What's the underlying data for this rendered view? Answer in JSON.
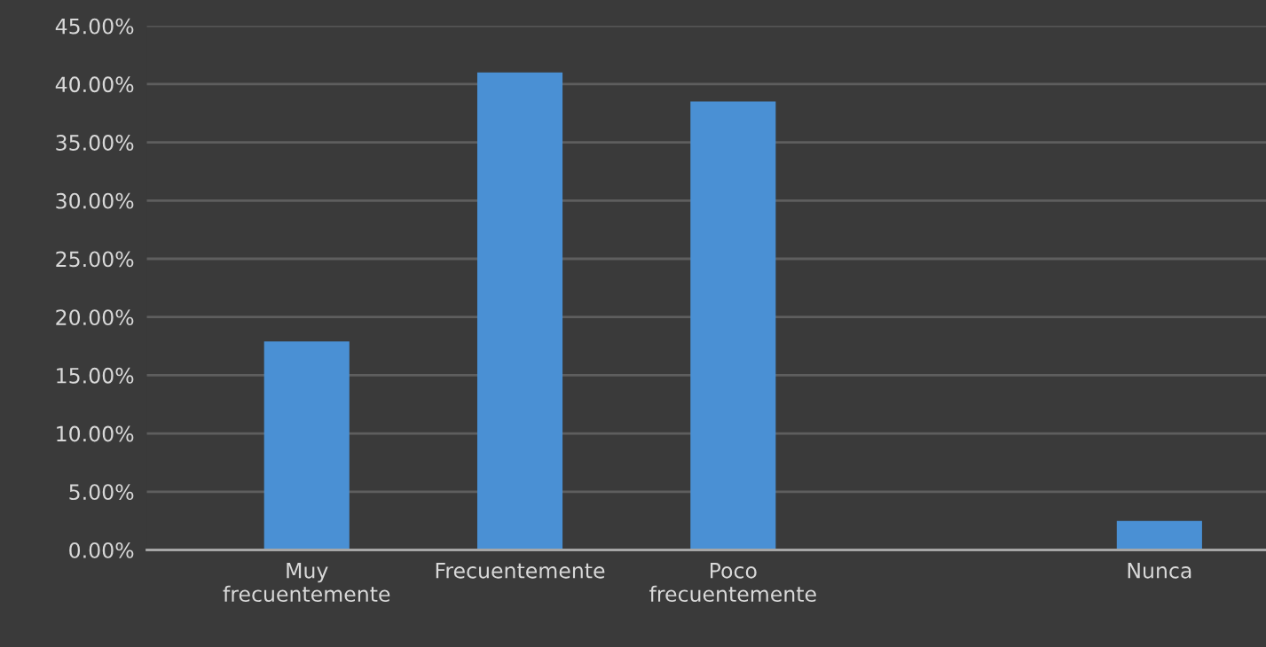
{
  "chart_data": {
    "type": "bar",
    "categories": [
      "Muy\nfrecuentemente",
      "Frecuentemente",
      "Poco\nfrecuentemente",
      null,
      "Nunca"
    ],
    "values": [
      17.9,
      41.0,
      38.5,
      null,
      2.5
    ],
    "color": "#4a90d4",
    "ylim": [
      0,
      45
    ],
    "yticks": [
      {
        "value": 0,
        "label": "0.00%"
      },
      {
        "value": 5,
        "label": "5.00%"
      },
      {
        "value": 10,
        "label": "10.00%"
      },
      {
        "value": 15,
        "label": "15.00%"
      },
      {
        "value": 20,
        "label": "20.00%"
      },
      {
        "value": 25,
        "label": "25.00%"
      },
      {
        "value": 30,
        "label": "30.00%"
      },
      {
        "value": 35,
        "label": "35.00%"
      },
      {
        "value": 40,
        "label": "40.00%"
      },
      {
        "value": 45,
        "label": "45.00%"
      }
    ],
    "grid": "y",
    "legend": false
  }
}
